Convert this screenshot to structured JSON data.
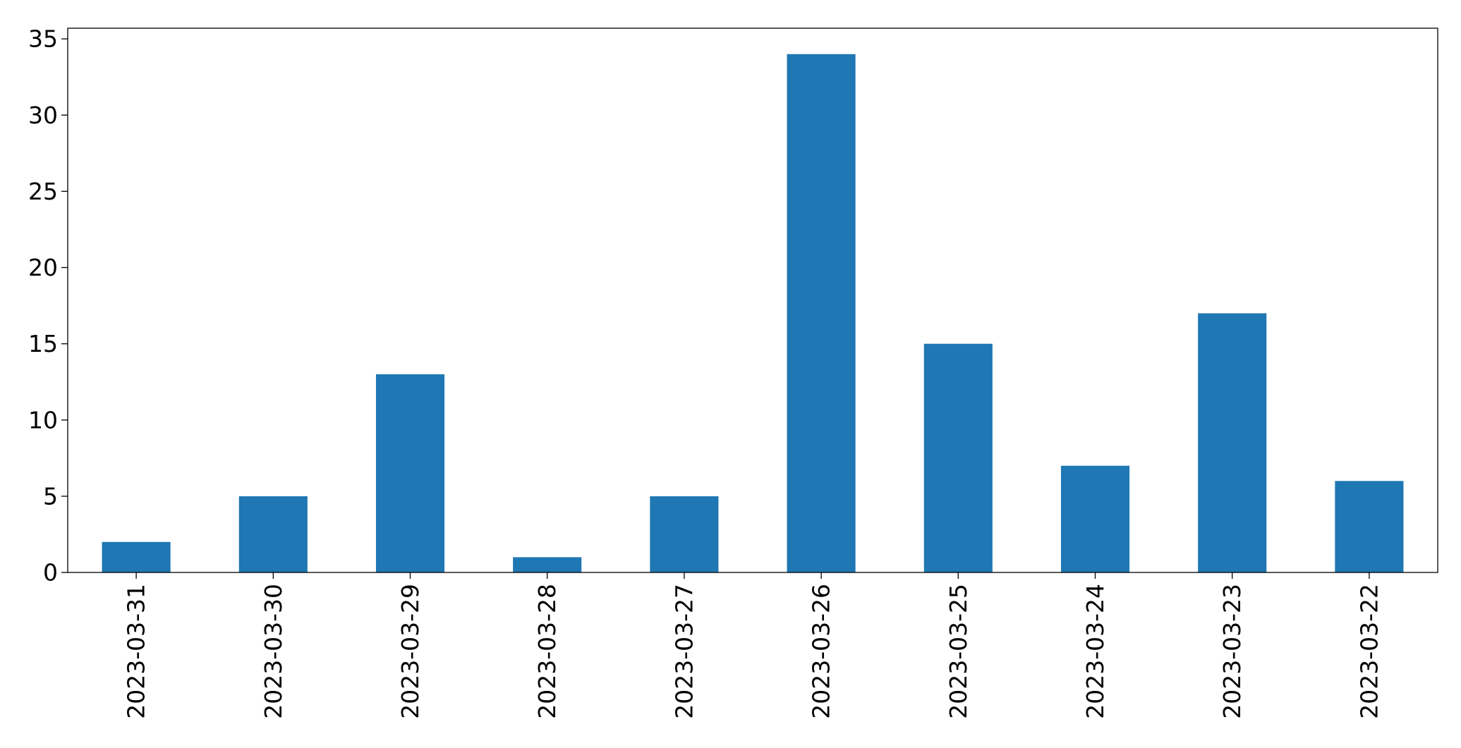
{
  "chart_data": {
    "type": "bar",
    "title": "",
    "xlabel": "",
    "ylabel": "",
    "categories": [
      "2023-03-31",
      "2023-03-30",
      "2023-03-29",
      "2023-03-28",
      "2023-03-27",
      "2023-03-26",
      "2023-03-25",
      "2023-03-24",
      "2023-03-23",
      "2023-03-22"
    ],
    "values": [
      2,
      5,
      13,
      1,
      5,
      34,
      15,
      7,
      17,
      6
    ],
    "ylim": [
      0,
      35.7
    ],
    "yticks": [
      "0",
      "5",
      "10",
      "15",
      "20",
      "25",
      "30",
      "35"
    ],
    "grid": false,
    "legend": false,
    "bar_color": "#1f77b4"
  }
}
